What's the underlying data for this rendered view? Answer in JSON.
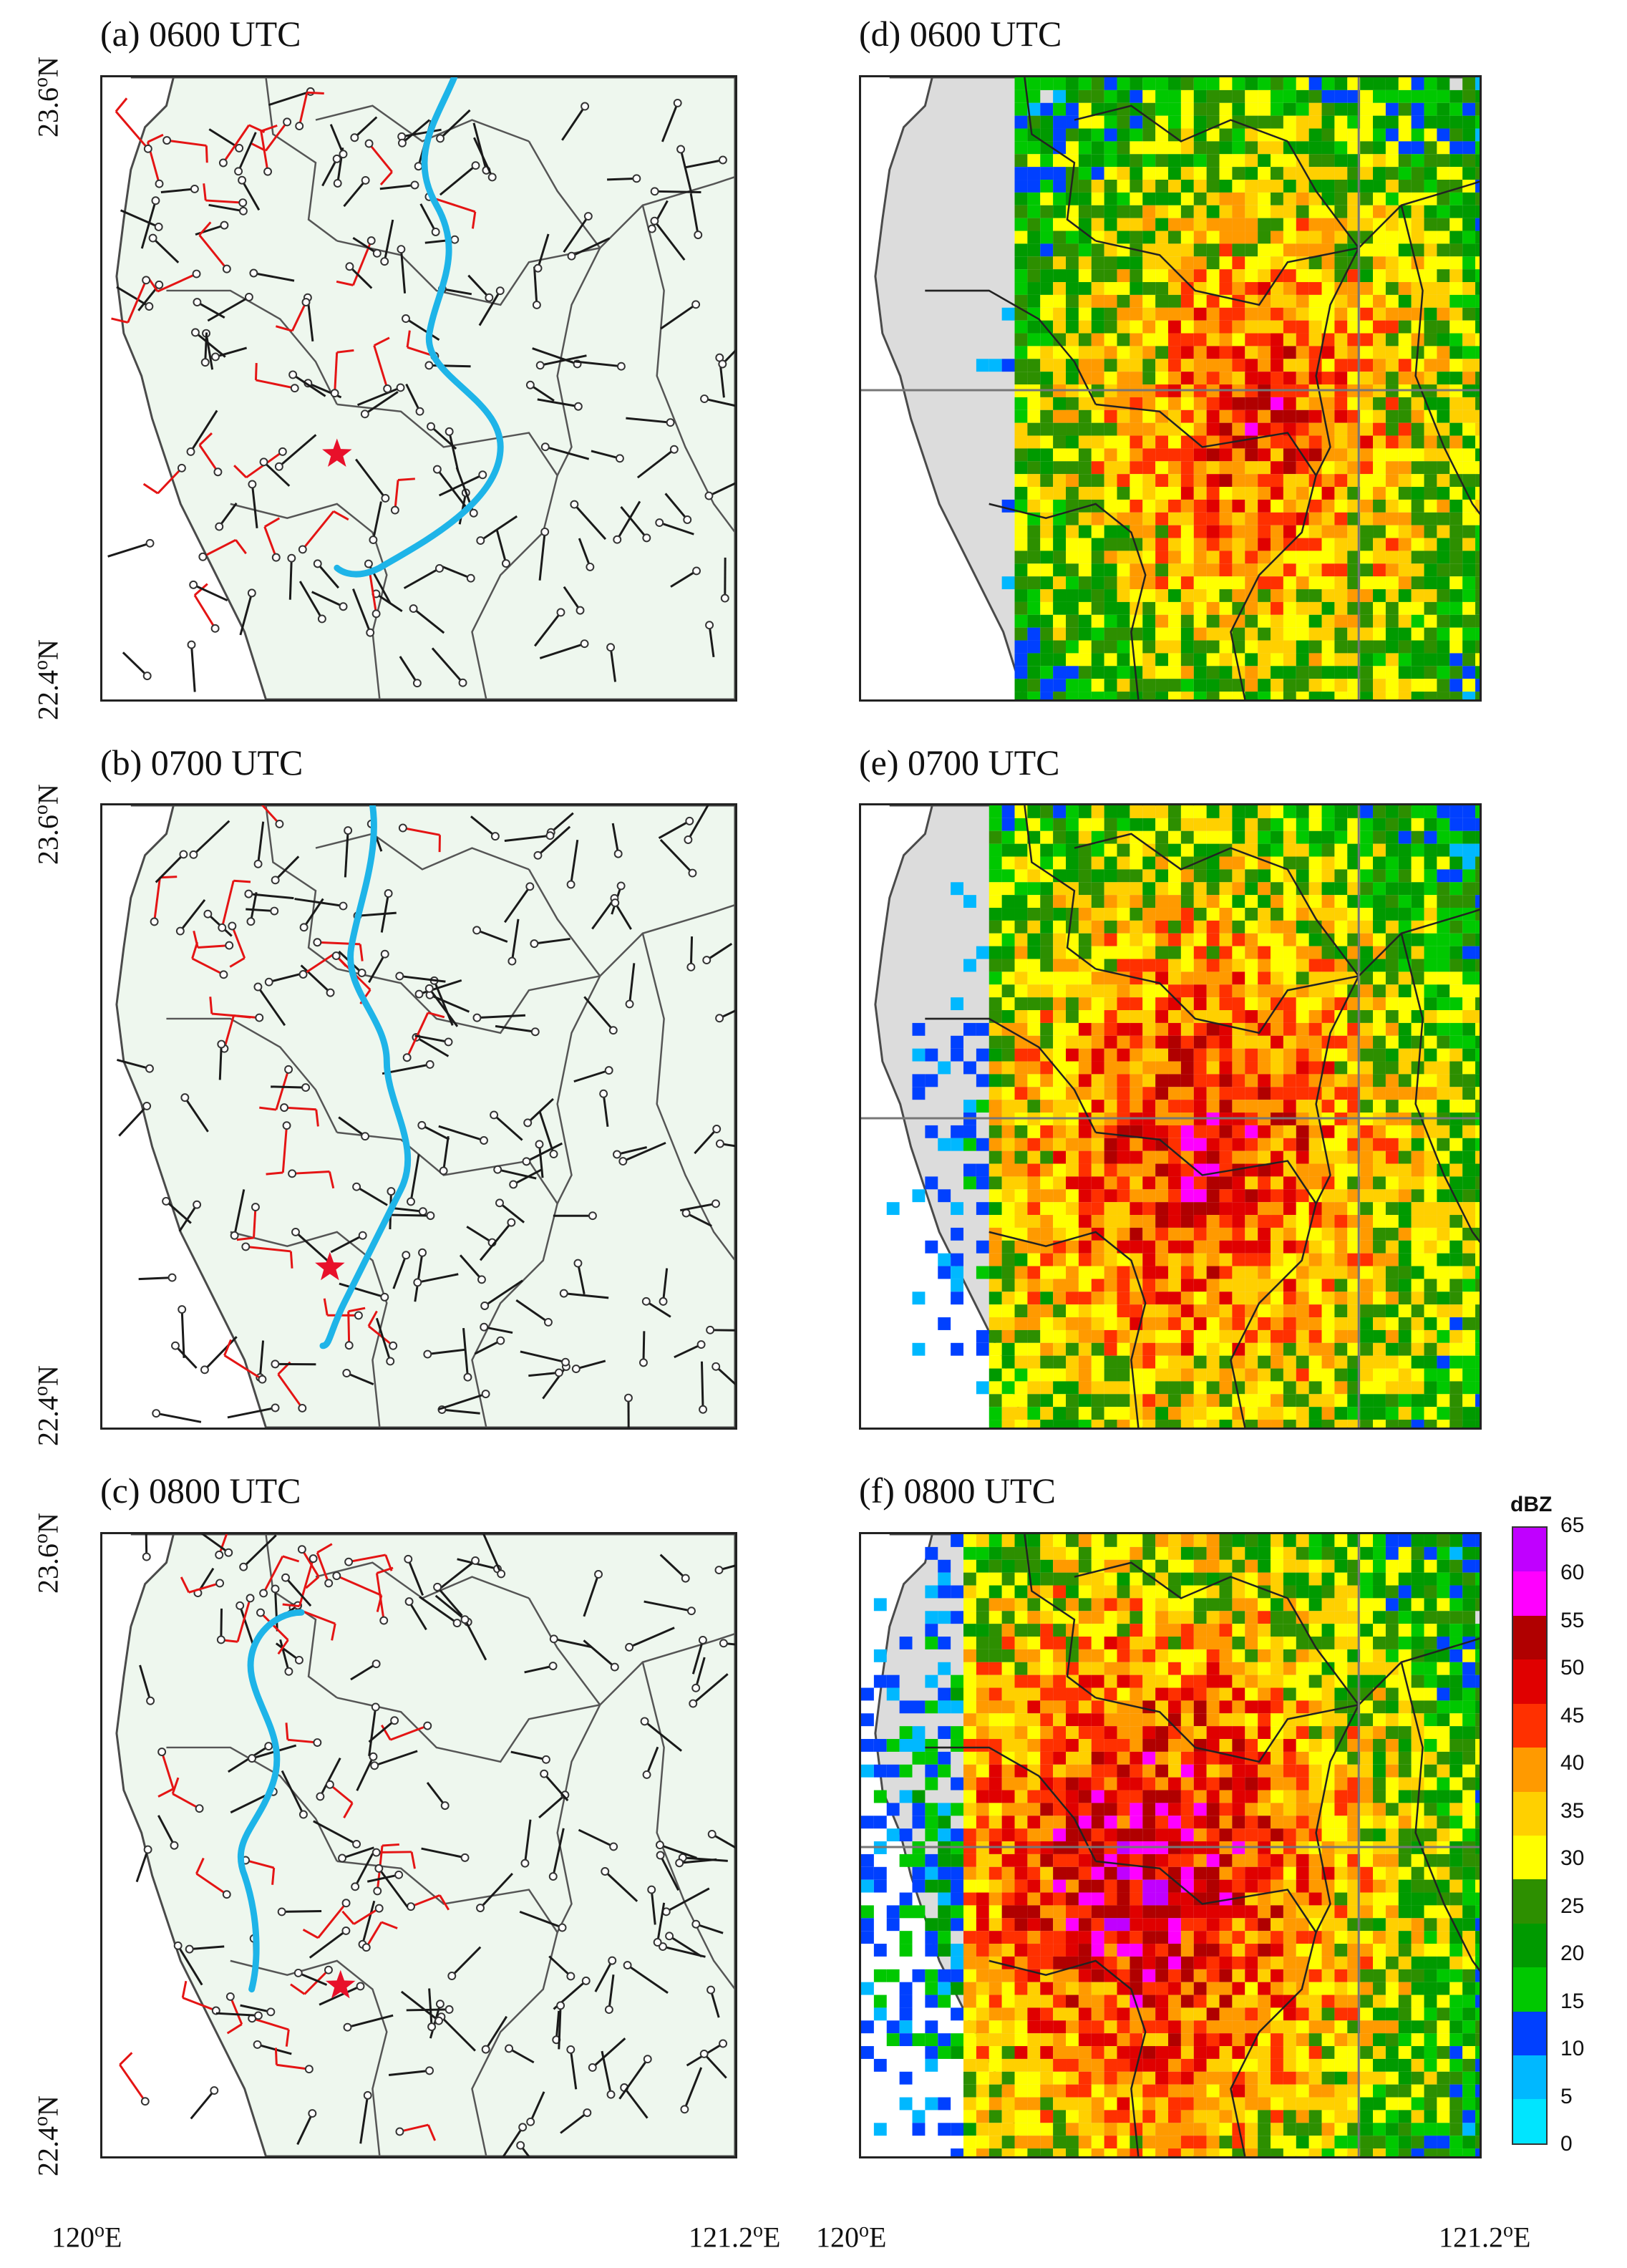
{
  "panels": {
    "a": {
      "title": "(a) 0600 UTC"
    },
    "b": {
      "title": "(b) 0700 UTC"
    },
    "c": {
      "title": "(c) 0800 UTC"
    },
    "d": {
      "title": "(d) 0600 UTC"
    },
    "e": {
      "title": "(e) 0700 UTC"
    },
    "f": {
      "title": "(f) 0800 UTC"
    }
  },
  "axes": {
    "lat_top": "23.6",
    "lat_bottom": "22.4",
    "lat_suffix": "N",
    "lon_left": "120",
    "lon_right": "121.2",
    "lon_suffix": "E",
    "degree_symbol": "o"
  },
  "colorbar": {
    "unit": "dBZ",
    "ticks": [
      "65",
      "60",
      "55",
      "50",
      "45",
      "40",
      "35",
      "30",
      "25",
      "20",
      "15",
      "10",
      "5",
      "0"
    ],
    "colors": [
      "#00e5ff",
      "#00b8ff",
      "#0040ff",
      "#00c800",
      "#009a00",
      "#2d8f00",
      "#ffff00",
      "#ffd000",
      "#ff9a00",
      "#ff3000",
      "#e00000",
      "#b00000",
      "#ff00ff",
      "#c000ff"
    ]
  },
  "colors": {
    "land": "#eef7ee",
    "radar_land": "#dcdcdc",
    "front_line": "#1eb4e8",
    "wind_black": "#1a1a1a",
    "wind_red": "#e41414",
    "star": "#e8102a",
    "county_border": "#555555"
  }
}
